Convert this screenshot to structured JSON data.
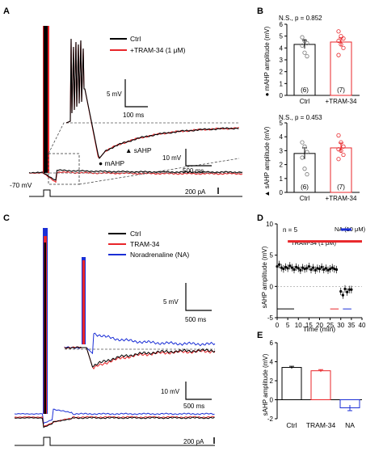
{
  "panel_labels": {
    "A": "A",
    "B": "B",
    "C": "C",
    "D": "D",
    "E": "E"
  },
  "colors": {
    "ctrl": "#000000",
    "tram": "#e8262a",
    "na": "#1b2fd6",
    "dashed": "#555555",
    "dot": "#c94b4b"
  },
  "panel_A": {
    "legend": [
      {
        "name": "Ctrl",
        "color": "#000000"
      },
      {
        "name": "+TRAM-34 (1 μM)",
        "color": "#e8262a"
      }
    ],
    "holding_label": "-70 mV",
    "scale_inset": {
      "v": "5 mV",
      "t": "100 ms"
    },
    "scale_main": {
      "v": "10 mV",
      "t": "500 ms"
    },
    "current_label": "200 pA",
    "markers": {
      "sahp": "▲ sAHP",
      "mahp": "● mAHP"
    }
  },
  "panel_C": {
    "legend": [
      {
        "name": "Ctrl",
        "color": "#000000"
      },
      {
        "name": "TRAM-34",
        "color": "#e8262a"
      },
      {
        "name": "Noradrenaline (NA)",
        "color": "#1b2fd6"
      }
    ],
    "scale_top": {
      "v": "5 mV",
      "t": "500 ms"
    },
    "scale_bottom": {
      "v": "10 mV",
      "t": "500 ms"
    },
    "current_label": "200 pA"
  },
  "chart_data": [
    {
      "type": "bar",
      "panel": "B-top",
      "categories": [
        "Ctrl",
        "+TRAM-34"
      ],
      "values": [
        4.3,
        4.5
      ],
      "errors": [
        0.35,
        0.35
      ],
      "n_labels": [
        "(6)",
        "(7)"
      ],
      "points": [
        [
          4.9,
          4.6,
          4.4,
          4.2,
          3.6,
          3.3
        ],
        [
          5.4,
          5.0,
          4.8,
          4.6,
          4.3,
          4.0,
          3.4
        ]
      ],
      "annotation": "N.S., p = 0.852",
      "ylabel": "● mAHP amplitude (mV)",
      "ylim": [
        0,
        6
      ],
      "yticks": [
        0,
        1,
        2,
        3,
        4,
        5,
        6
      ]
    },
    {
      "type": "bar",
      "panel": "B-bottom",
      "categories": [
        "Ctrl",
        "+TRAM-34"
      ],
      "values": [
        2.8,
        3.2
      ],
      "errors": [
        0.4,
        0.35
      ],
      "n_labels": [
        "(6)",
        "(7)"
      ],
      "points": [
        [
          3.6,
          3.3,
          2.9,
          2.5,
          1.7,
          1.3
        ],
        [
          4.1,
          3.6,
          3.3,
          3.1,
          3.0,
          2.7,
          2.4
        ]
      ],
      "annotation": "N.S., p = 0.453",
      "ylabel": "▲ sAHP amplitude (mV)",
      "ylim": [
        0,
        5
      ],
      "yticks": [
        0,
        1,
        2,
        3,
        4,
        5
      ]
    },
    {
      "type": "scatter",
      "panel": "D",
      "x": [
        0,
        1,
        2,
        3,
        4,
        5,
        6,
        7,
        8,
        9,
        10,
        11,
        12,
        13,
        14,
        15,
        16,
        17,
        18,
        19,
        20,
        21,
        22,
        23,
        24,
        25,
        26,
        27,
        28,
        30,
        31,
        32,
        33,
        34,
        35
      ],
      "y": [
        3.2,
        3.5,
        3.0,
        2.8,
        3.1,
        2.9,
        3.3,
        3.0,
        2.7,
        3.1,
        2.9,
        2.6,
        3.0,
        2.8,
        2.9,
        3.2,
        2.7,
        3.0,
        2.6,
        2.9,
        2.8,
        3.1,
        2.7,
        2.9,
        2.6,
        2.8,
        3.0,
        2.8,
        2.7,
        -0.8,
        -1.4,
        -0.4,
        -0.9,
        -0.5,
        -0.5
      ],
      "annotation": "n = 5",
      "bars": [
        {
          "label": "TRAM-34 (1 μM)",
          "from": 5,
          "to": 40,
          "color": "#e8262a"
        },
        {
          "label": "NA (10 μM)",
          "from": 30,
          "to": 35,
          "color": "#1b2fd6"
        }
      ],
      "xlabel": "Time (min)",
      "ylabel": "sAHP amplitude (mV)",
      "xlim": [
        0,
        40
      ],
      "ylim": [
        -5,
        10
      ],
      "xticks": [
        0,
        5,
        10,
        15,
        20,
        25,
        30,
        35,
        40
      ],
      "yticks": [
        -5,
        0,
        5,
        10
      ]
    },
    {
      "type": "bar",
      "panel": "E",
      "categories": [
        "Ctrl",
        "TRAM-34",
        "NA"
      ],
      "values": [
        3.4,
        3.05,
        -0.85
      ],
      "errors": [
        0.12,
        0.12,
        0.3
      ],
      "colors": [
        "#000000",
        "#e8262a",
        "#1b2fd6"
      ],
      "ylabel": "sAHP amplitude (mV)",
      "ylim": [
        -2,
        6
      ],
      "yticks": [
        -2,
        0,
        2,
        4,
        6
      ]
    }
  ]
}
